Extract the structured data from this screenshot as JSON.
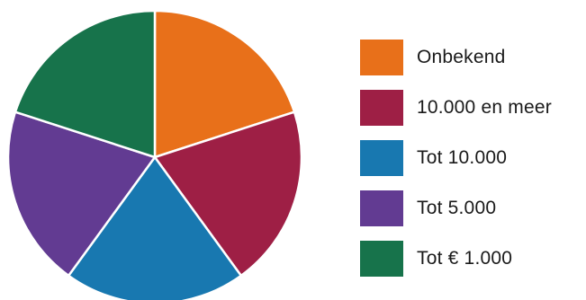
{
  "chart_data": {
    "type": "pie",
    "title": "",
    "legend_position": "right",
    "slices": [
      {
        "label": "Onbekend",
        "value": 20,
        "color": "#E8701A"
      },
      {
        "label": "10.000 en meer",
        "value": 20,
        "color": "#9E1F45"
      },
      {
        "label": "Tot 10.000",
        "value": 20,
        "color": "#1878B0"
      },
      {
        "label": "Tot 5.000",
        "value": 20,
        "color": "#623B92"
      },
      {
        "label": "Tot € 1.000",
        "value": 20,
        "color": "#17734B"
      }
    ],
    "start_angle_deg": 0,
    "direction": "clockwise"
  }
}
